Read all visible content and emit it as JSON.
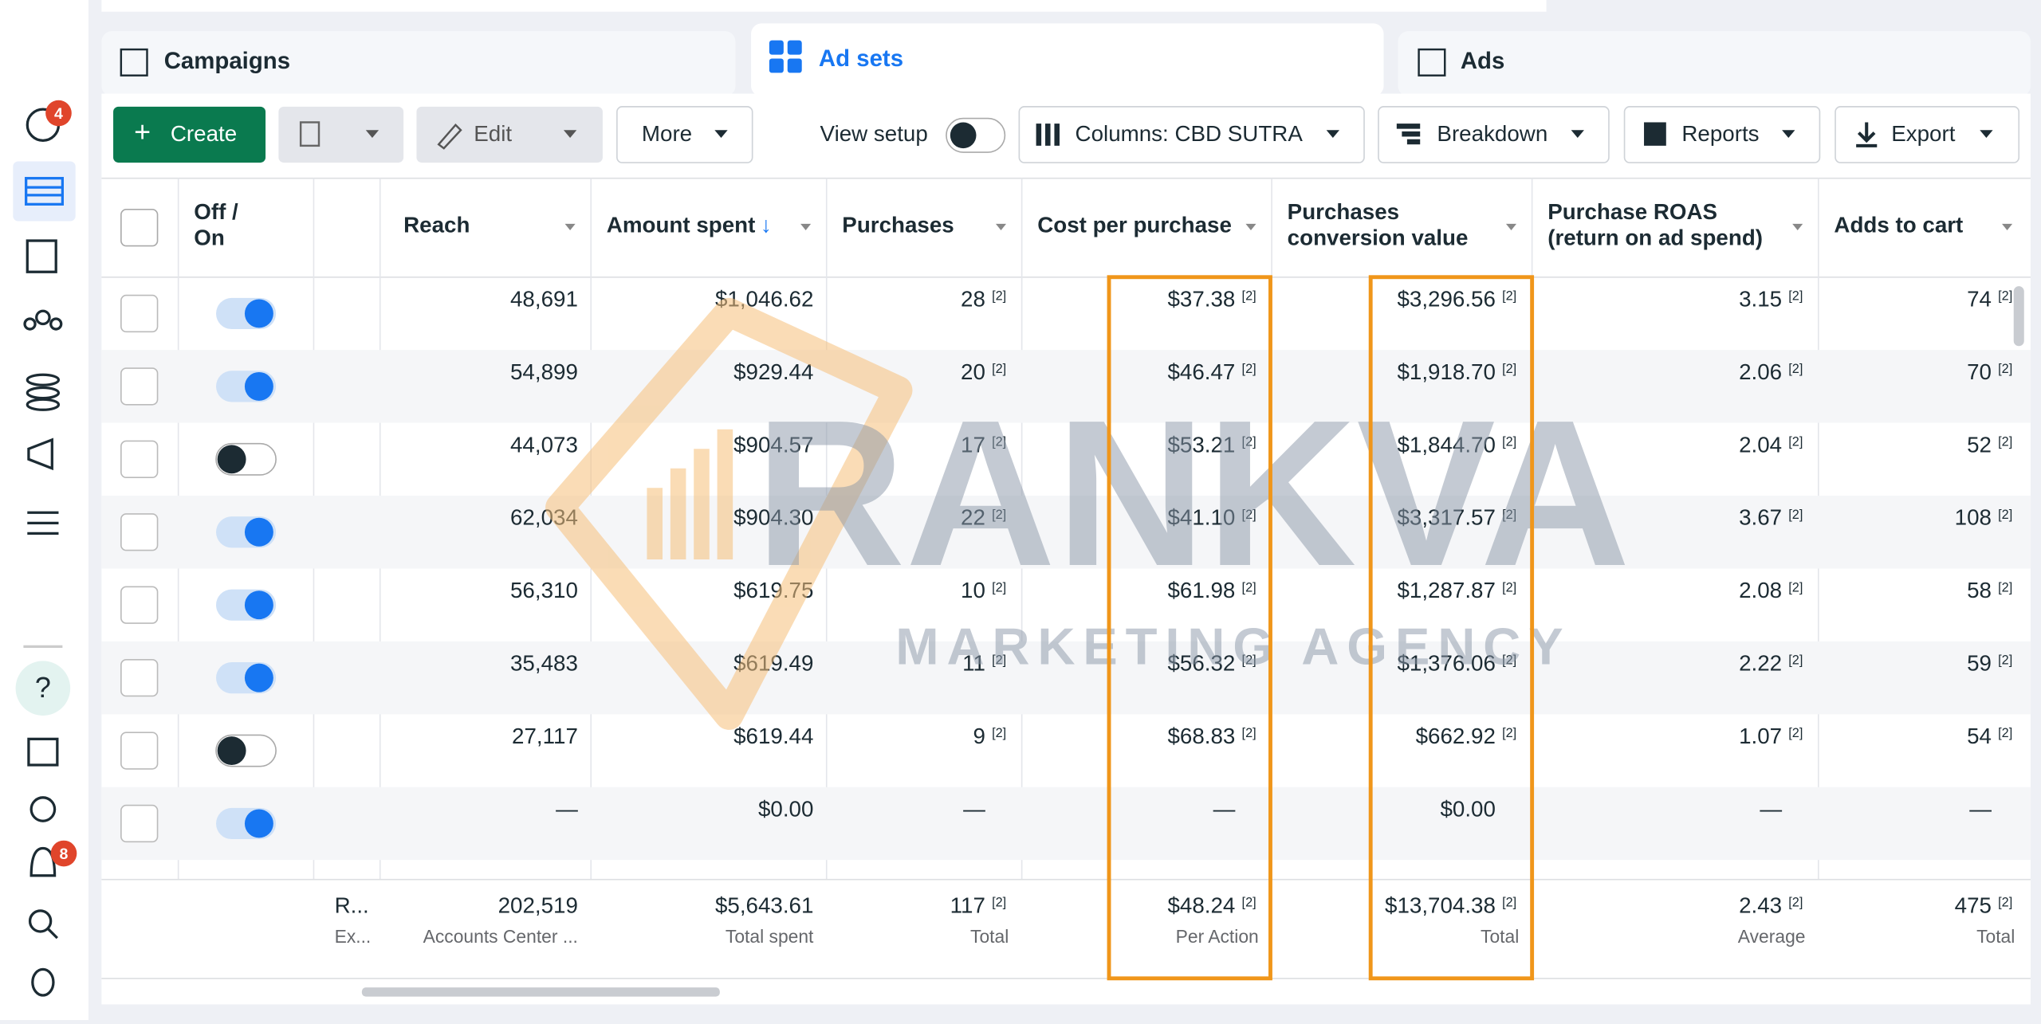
{
  "sidebar": {
    "badges": [
      "4",
      "8"
    ]
  },
  "tabs": [
    "Campaigns",
    "Ad sets",
    "Ads"
  ],
  "toolbar": {
    "create": "Create",
    "edit": "Edit",
    "more": "More",
    "view_setup": "View setup",
    "columns": "Columns: CBD SUTRA",
    "breakdown": "Breakdown",
    "reports": "Reports",
    "export": "Export"
  },
  "table": {
    "off_on": [
      "Off /",
      "On"
    ],
    "headers": [
      {
        "lines": [
          "Reach"
        ]
      },
      {
        "lines": [
          "Amount spent"
        ],
        "sort": "↓"
      },
      {
        "lines": [
          "Purchases"
        ]
      },
      {
        "lines": [
          "Cost per purchase"
        ]
      },
      {
        "lines": [
          "Purchases",
          "conversion value"
        ]
      },
      {
        "lines": [
          "Purchase ROAS",
          "(return on ad spend)"
        ]
      },
      {
        "lines": [
          "Adds to cart"
        ]
      }
    ],
    "note": "[2]",
    "rows": [
      {
        "on": true,
        "noted": true,
        "cells": [
          "48,691",
          "$1,046.62",
          "28",
          "$37.38",
          "$3,296.56",
          "3.15",
          "74"
        ]
      },
      {
        "on": true,
        "noted": true,
        "cells": [
          "54,899",
          "$929.44",
          "20",
          "$46.47",
          "$1,918.70",
          "2.06",
          "70"
        ]
      },
      {
        "on": false,
        "noted": true,
        "cells": [
          "44,073",
          "$904.57",
          "17",
          "$53.21",
          "$1,844.70",
          "2.04",
          "52"
        ]
      },
      {
        "on": true,
        "noted": true,
        "cells": [
          "62,034",
          "$904.30",
          "22",
          "$41.10",
          "$3,317.57",
          "3.67",
          "108"
        ]
      },
      {
        "on": true,
        "noted": true,
        "cells": [
          "56,310",
          "$619.75",
          "10",
          "$61.98",
          "$1,287.87",
          "2.08",
          "58"
        ]
      },
      {
        "on": true,
        "noted": true,
        "cells": [
          "35,483",
          "$619.49",
          "11",
          "$56.32",
          "$1,376.06",
          "2.22",
          "59"
        ]
      },
      {
        "on": false,
        "noted": true,
        "cells": [
          "27,117",
          "$619.44",
          "9",
          "$68.83",
          "$662.92",
          "1.07",
          "54"
        ]
      },
      {
        "on": true,
        "noted": false,
        "cells": [
          "—",
          "$0.00",
          "—",
          "—",
          "$0.00",
          "—",
          "—"
        ]
      }
    ],
    "totals": {
      "name": [
        "R...",
        "Ex..."
      ],
      "values": [
        "202,519",
        "$5,643.61",
        "117",
        "$48.24",
        "$13,704.38",
        "2.43",
        "475"
      ],
      "captions": [
        "Accounts Center ...",
        "Total spent",
        "Total",
        "Per Action",
        "Total",
        "Average",
        "Total"
      ]
    }
  },
  "watermark": {
    "brand": "RANKVA",
    "tagline": "MARKETING AGENCY"
  }
}
